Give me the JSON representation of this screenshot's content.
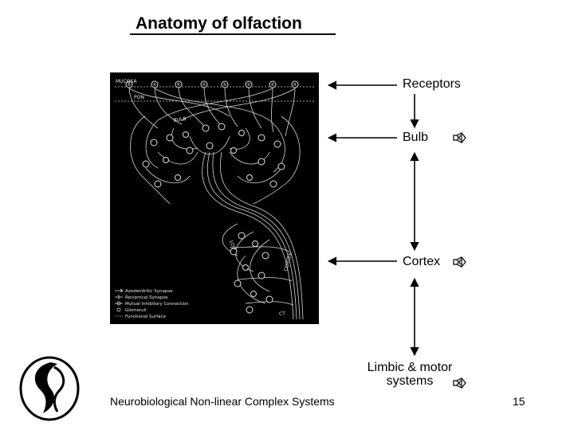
{
  "slide": {
    "title": "Anatomy of olfaction",
    "footer": "Neurobiological Non-linear Complex Systems",
    "page_number": "15"
  },
  "diagram": {
    "labels": {
      "mucosa": "MUCOSA",
      "pon": "PON",
      "bulb": "BULB",
      "lot": "LOT",
      "cortex": "CORTEX",
      "ct": "CT"
    },
    "receptor_glyph": "R",
    "legend": [
      "Axodendritic Synapse",
      "Reciprocal Synapse",
      "Mutual Inhibitory Connection",
      "Glomeruli",
      "Functional Surface"
    ]
  },
  "annotations": {
    "receptors": "Receptors",
    "bulb": "Bulb",
    "cortex": "Cortex",
    "limbic_line1": "Limbic & motor",
    "limbic_line2": "systems"
  },
  "icons": {
    "sound_icon": "speaker-x-icon",
    "logo": "university-logo"
  }
}
